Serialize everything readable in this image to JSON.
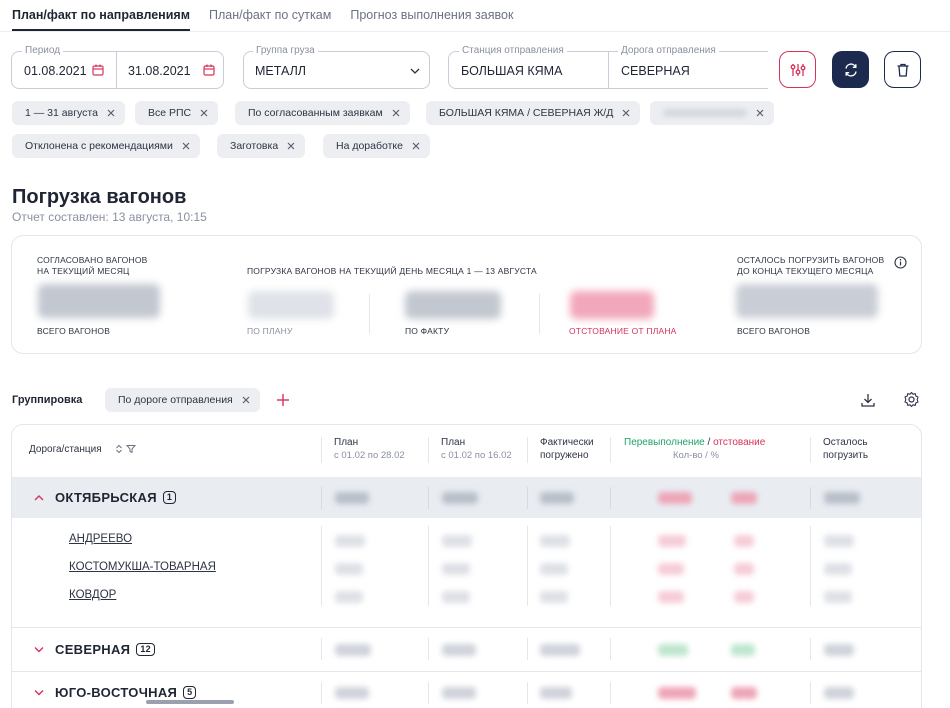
{
  "tabs": [
    {
      "label": "План/факт по направлениям",
      "active": true
    },
    {
      "label": "План/факт по суткам",
      "active": false
    },
    {
      "label": "Прогноз выполнения заявок",
      "active": false
    }
  ],
  "filters": {
    "period_label": "Период",
    "date_from": "01.08.2021",
    "date_to": "31.08.2021",
    "cargo_group_label": "Группа груза",
    "cargo_group_value": "МЕТАЛЛ",
    "station_label": "Станция отправления",
    "station_value": "БОЛЬШАЯ КЯМА",
    "road_label": "Дорога отправления",
    "road_value": "СЕВЕРНАЯ"
  },
  "chips": [
    "1 — 31 августа",
    "Все РПС",
    "По согласованным заявкам",
    "БОЛЬШАЯ КЯМА / СЕВЕРНАЯ Ж/Д",
    "Отклонена с рекомендациями",
    "Заготовка",
    "На доработке"
  ],
  "page": {
    "title": "Погрузка вагонов",
    "report_time": "Отчет составлен: 13 августа, 10:15"
  },
  "summary": {
    "agreed_caption_1": "СОГЛАСОВАНО ВАГОНОВ",
    "agreed_caption_2": "НА ТЕКУЩИЙ МЕСЯЦ",
    "agreed_sub": "ВСЕГО ВАГОНОВ",
    "loading_caption": "ПОГРУЗКА ВАГОНОВ НА ТЕКУЩИЙ ДЕНЬ МЕСЯЦА  1 — 13 АВГУСТА",
    "plan_sub": "ПО ПЛАНУ",
    "fact_sub": "ПО ФАКТУ",
    "lag_sub": "ОТСТОВАНИЕ ОТ ПЛАНА",
    "remain_caption_1": "ОСТАЛОСЬ ПОГРУЗИТЬ ВАГОНОВ",
    "remain_caption_2": "ДО КОНЦА ТЕКУЩЕГО МЕСЯЦА",
    "remain_sub": "ВСЕГО ВАГОНОВ"
  },
  "grouping": {
    "label": "Группировка",
    "chip": "По дороге отправления"
  },
  "table": {
    "col_road": "Дорога/станция",
    "col_plan_month": "План",
    "col_plan_month_range": "с 01.02 по 28.02",
    "col_plan_period": "План",
    "col_plan_period_range": "с 01.02 по 16.02",
    "col_fact_1": "Фактически",
    "col_fact_2": "погружено",
    "col_over": "Перевыполнение",
    "col_slash": " / ",
    "col_lag": "отстование",
    "col_qty": "Кол-во  /  %",
    "col_remain_1": "Осталось",
    "col_remain_2": "погрузить",
    "groups": [
      {
        "name": "ОКТЯБРЬСКАЯ",
        "count": "1",
        "stations": [
          "АНДРЕЕВО",
          "КОСТОМУКША-ТОВАРНАЯ",
          "КОВДОР"
        ]
      },
      {
        "name": "СЕВЕРНАЯ",
        "count": "12",
        "stations": []
      },
      {
        "name": "ЮГО-ВОСТОЧНАЯ",
        "count": "5",
        "stations": []
      }
    ]
  },
  "colors": {
    "accent_navy": "#1b2a4e",
    "accent_red": "#d6335a",
    "accent_green": "#1fa36a"
  }
}
